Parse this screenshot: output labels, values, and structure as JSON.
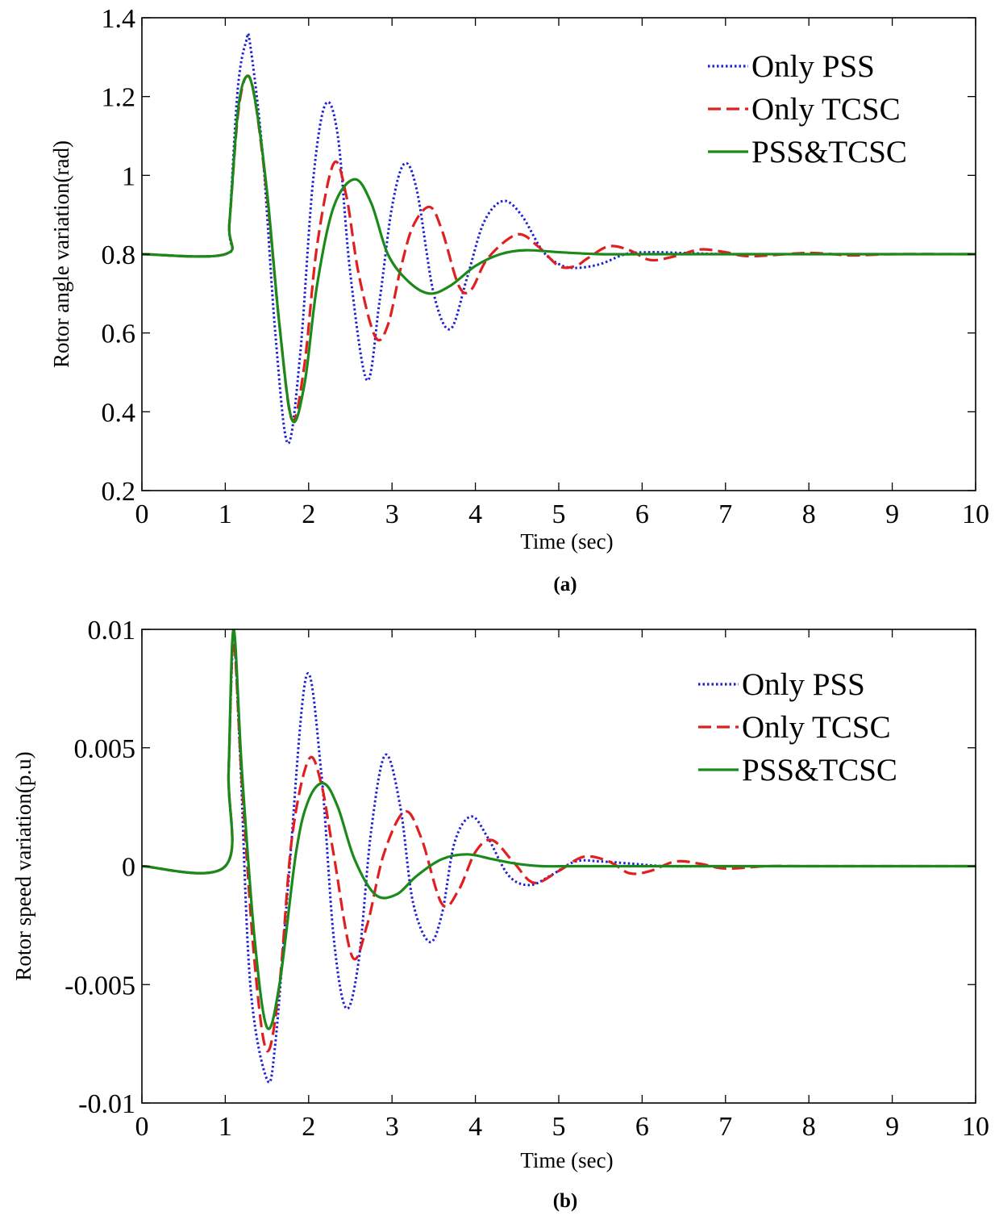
{
  "chart_data": [
    {
      "type": "line",
      "caption": "(a)",
      "xlabel": "Time (sec)",
      "ylabel": "Rotor angle variation(rad)",
      "xlim": [
        0,
        10
      ],
      "ylim": [
        0.2,
        1.4
      ],
      "xticks": [
        "0",
        "1",
        "2",
        "3",
        "4",
        "5",
        "6",
        "7",
        "8",
        "9",
        "10"
      ],
      "yticks": [
        "0.2",
        "0.4",
        "0.6",
        "0.8",
        "1",
        "1.2",
        "1.4"
      ],
      "legend_position": "top-right",
      "grid": false,
      "series": [
        {
          "name": "Only PSS",
          "color": "#1f1fd6",
          "dash": "dotted",
          "x": [
            0,
            1.0,
            1.05,
            1.15,
            1.25,
            1.3,
            1.45,
            1.6,
            1.75,
            1.9,
            2.05,
            2.2,
            2.35,
            2.5,
            2.7,
            2.85,
            3.0,
            3.15,
            3.3,
            3.5,
            3.7,
            3.9,
            4.1,
            4.33,
            4.55,
            4.8,
            5.0,
            5.2,
            5.5,
            5.8,
            6.1,
            6.5,
            7.0,
            7.5,
            8.0,
            9.0,
            10.0
          ],
          "y": [
            0.8,
            0.8,
            0.88,
            1.22,
            1.34,
            1.33,
            1.05,
            0.6,
            0.32,
            0.55,
            0.98,
            1.18,
            1.1,
            0.75,
            0.48,
            0.68,
            0.92,
            1.03,
            0.96,
            0.7,
            0.61,
            0.74,
            0.88,
            0.935,
            0.9,
            0.81,
            0.775,
            0.765,
            0.775,
            0.8,
            0.805,
            0.803,
            0.8,
            0.8,
            0.8,
            0.8,
            0.8
          ]
        },
        {
          "name": "Only TCSC",
          "color": "#e02020",
          "dash": "dashed",
          "x": [
            0,
            1.0,
            1.05,
            1.15,
            1.25,
            1.35,
            1.5,
            1.65,
            1.8,
            1.95,
            2.1,
            2.3,
            2.45,
            2.6,
            2.8,
            2.95,
            3.1,
            3.25,
            3.45,
            3.6,
            3.8,
            3.95,
            4.15,
            4.5,
            4.75,
            5.0,
            5.2,
            5.35,
            5.6,
            5.85,
            6.1,
            6.4,
            6.7,
            7.0,
            7.3,
            8.0,
            8.5,
            9.0,
            10.0
          ],
          "y": [
            0.8,
            0.8,
            0.88,
            1.15,
            1.25,
            1.2,
            0.95,
            0.62,
            0.38,
            0.52,
            0.82,
            1.03,
            0.95,
            0.75,
            0.59,
            0.62,
            0.76,
            0.87,
            0.92,
            0.86,
            0.72,
            0.71,
            0.79,
            0.85,
            0.82,
            0.77,
            0.77,
            0.79,
            0.82,
            0.81,
            0.785,
            0.795,
            0.812,
            0.805,
            0.795,
            0.803,
            0.797,
            0.8,
            0.8
          ]
        },
        {
          "name": "PSS&TCSC",
          "color": "#1a8a1a",
          "dash": "solid",
          "x": [
            0,
            1.0,
            1.05,
            1.15,
            1.25,
            1.35,
            1.5,
            1.65,
            1.8,
            1.95,
            2.1,
            2.3,
            2.55,
            2.75,
            2.95,
            3.2,
            3.45,
            3.7,
            4.0,
            4.3,
            4.6,
            5.0,
            5.5,
            6.0,
            7.0,
            8.0,
            10.0
          ],
          "y": [
            0.8,
            0.8,
            0.88,
            1.16,
            1.25,
            1.2,
            0.96,
            0.62,
            0.38,
            0.47,
            0.72,
            0.92,
            0.99,
            0.93,
            0.8,
            0.73,
            0.7,
            0.72,
            0.77,
            0.8,
            0.81,
            0.805,
            0.8,
            0.8,
            0.8,
            0.8,
            0.8
          ]
        }
      ]
    },
    {
      "type": "line",
      "caption": "(b)",
      "xlabel": "Time (sec)",
      "ylabel": "Rotor speed variation(p.u)",
      "xlim": [
        0,
        10
      ],
      "ylim": [
        -0.01,
        0.01
      ],
      "xticks": [
        "0",
        "1",
        "2",
        "3",
        "4",
        "5",
        "6",
        "7",
        "8",
        "9",
        "10"
      ],
      "yticks": [
        "-0.01",
        "-0.005",
        "0",
        "0.005",
        "0.01"
      ],
      "legend_position": "top-right",
      "grid": false,
      "series": [
        {
          "name": "Only PSS",
          "color": "#1f1fd6",
          "dash": "dotted",
          "x": [
            0,
            1.0,
            1.04,
            1.1,
            1.18,
            1.3,
            1.5,
            1.6,
            1.75,
            1.97,
            2.15,
            2.3,
            2.45,
            2.6,
            2.75,
            2.92,
            3.1,
            3.25,
            3.45,
            3.6,
            3.75,
            3.95,
            4.15,
            4.4,
            4.65,
            4.9,
            5.2,
            5.5,
            5.9,
            6.3,
            7.0,
            8.0,
            10.0
          ],
          "y": [
            0,
            0,
            0.004,
            0.0095,
            0.0045,
            -0.005,
            -0.009,
            -0.0075,
            -0.001,
            0.008,
            0.004,
            -0.003,
            -0.006,
            -0.004,
            0.0015,
            0.0047,
            0.0025,
            -0.0015,
            -0.0032,
            -0.002,
            0.001,
            0.0021,
            0.0012,
            -0.0004,
            -0.0008,
            -0.0004,
            0.0002,
            0.0002,
            0.0001,
            0.0,
            0.0,
            0.0,
            0.0
          ]
        },
        {
          "name": "Only TCSC",
          "color": "#e02020",
          "dash": "dashed",
          "x": [
            0,
            1.0,
            1.04,
            1.1,
            1.2,
            1.35,
            1.5,
            1.65,
            1.8,
            2.0,
            2.15,
            2.3,
            2.52,
            2.7,
            2.9,
            3.15,
            3.35,
            3.6,
            3.8,
            4.0,
            4.2,
            4.45,
            4.7,
            5.0,
            5.3,
            5.6,
            5.85,
            6.1,
            6.4,
            6.7,
            7.0,
            7.5,
            8.0,
            9.0,
            10.0
          ],
          "y": [
            0,
            0,
            0.004,
            0.0095,
            0.0035,
            -0.004,
            -0.0078,
            -0.005,
            0.0012,
            0.0045,
            0.0035,
            0.0005,
            -0.0038,
            -0.0025,
            0.0005,
            0.0023,
            0.0012,
            -0.0016,
            -0.001,
            0.0006,
            0.0011,
            0.0002,
            -0.0007,
            -0.0002,
            0.0004,
            0.0002,
            -0.0003,
            -0.0002,
            0.0002,
            0.0001,
            -0.0001,
            0.0,
            0.0,
            0.0,
            0.0
          ]
        },
        {
          "name": "PSS&TCSC",
          "color": "#1a8a1a",
          "dash": "solid",
          "x": [
            0,
            1.0,
            1.04,
            1.1,
            1.2,
            1.35,
            1.5,
            1.65,
            1.85,
            2.0,
            2.18,
            2.35,
            2.55,
            2.8,
            3.05,
            3.3,
            3.6,
            3.9,
            4.2,
            4.5,
            4.8,
            5.2,
            6.0,
            7.0,
            10.0
          ],
          "y": [
            0,
            0,
            0.004,
            0.01,
            0.004,
            -0.003,
            -0.0068,
            -0.005,
            0.0006,
            0.0028,
            0.0035,
            0.0025,
            0.0003,
            -0.0012,
            -0.0012,
            -0.0004,
            0.0003,
            0.0005,
            0.0003,
            0.0001,
            0.0,
            0.0,
            0.0,
            0.0,
            0.0
          ]
        }
      ]
    }
  ]
}
